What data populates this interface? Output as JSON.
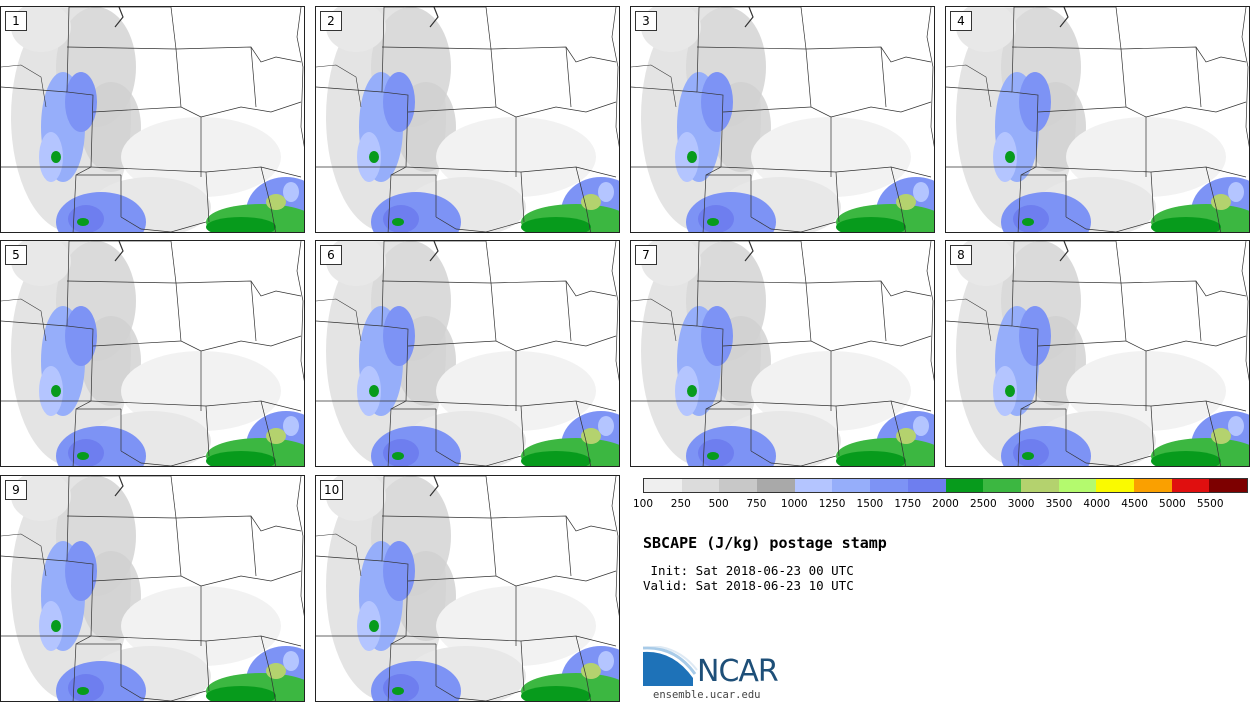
{
  "panels": [
    {
      "label": "1"
    },
    {
      "label": "2"
    },
    {
      "label": "3"
    },
    {
      "label": "4"
    },
    {
      "label": "5"
    },
    {
      "label": "6"
    },
    {
      "label": "7"
    },
    {
      "label": "8"
    },
    {
      "label": "9"
    },
    {
      "label": "10"
    }
  ],
  "colorbar": {
    "colors": [
      "#efefef",
      "#dcdcdc",
      "#c8c8c8",
      "#a9a9a9",
      "#b4c5ff",
      "#96aefa",
      "#7d93f5",
      "#6e7eef",
      "#079b1c",
      "#3cb741",
      "#b4d26e",
      "#b4fa6e",
      "#fafa00",
      "#faa000",
      "#e00f0f",
      "#7d0000"
    ],
    "labels": [
      "100",
      "250",
      "500",
      "750",
      "1000",
      "1250",
      "1500",
      "1750",
      "2000",
      "2500",
      "3000",
      "3500",
      "4000",
      "4500",
      "5000",
      "5500"
    ]
  },
  "title": "SBCAPE (J/kg) postage stamp",
  "init_line": " Init: Sat 2018-06-23 00 UTC",
  "valid_line": "Valid: Sat 2018-06-23 10 UTC",
  "logo": {
    "name": "NCAR",
    "url": "ensemble.ucar.edu"
  }
}
